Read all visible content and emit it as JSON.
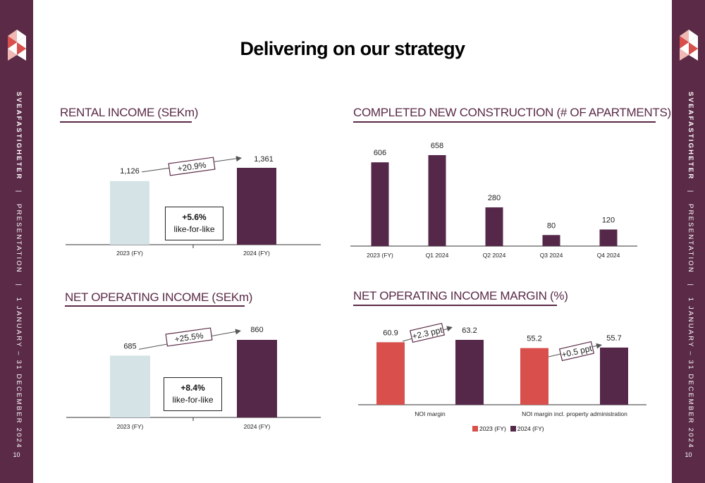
{
  "sidebar": {
    "company": "SVEAFASTIGHETER",
    "separator1": "|",
    "doc_type": "PRESENTATION",
    "separator2": "|",
    "period": "1 JANUARY – 31 DECEMBER 2024",
    "page_number": "10"
  },
  "page": {
    "title": "Delivering on our strategy"
  },
  "colors": {
    "brand": "#5a2a47",
    "light": "#d5e3e6",
    "red": "#d94f4c",
    "plum": "#55284a"
  },
  "sections": {
    "rental_income": {
      "title": "RENTAL INCOME (SEKm)",
      "change": "+20.9%",
      "lfl_pct": "+5.6%",
      "lfl_label": "like-for-like"
    },
    "construction": {
      "title": "COMPLETED NEW CONSTRUCTION (# OF APARTMENTS)"
    },
    "noi": {
      "title": "NET OPERATING INCOME (SEKm)",
      "change": "+25.5%",
      "lfl_pct": "+8.4%",
      "lfl_label": "like-for-like"
    },
    "noi_margin": {
      "title": "NET OPERATING INCOME MARGIN (%)",
      "change_1": "+2.3 ppt",
      "change_2": "+0.5 ppt"
    }
  },
  "chart_data": [
    {
      "type": "bar",
      "categories": [
        "2023 (FY)",
        "2024 (FY)"
      ],
      "values": [
        1126,
        1361
      ],
      "data_labels": [
        "1,126",
        "1,361"
      ],
      "title": "RENTAL INCOME (SEKm)"
    },
    {
      "type": "bar",
      "categories": [
        "2023 (FY)",
        "Q1 2024",
        "Q2 2024",
        "Q3 2024",
        "Q4 2024"
      ],
      "values": [
        606,
        658,
        280,
        80,
        120
      ],
      "data_labels": [
        "606",
        "658",
        "280",
        "80",
        "120"
      ],
      "title": "COMPLETED NEW CONSTRUCTION (# OF APARTMENTS)"
    },
    {
      "type": "bar",
      "categories": [
        "2023 (FY)",
        "2024 (FY)"
      ],
      "values": [
        685,
        860
      ],
      "data_labels": [
        "685",
        "860"
      ],
      "title": "NET OPERATING INCOME (SEKm)"
    },
    {
      "type": "bar",
      "categories": [
        "NOI margin",
        "NOI margin incl. property administration"
      ],
      "series": [
        {
          "name": "2023 (FY)",
          "values": [
            60.9,
            55.2
          ],
          "data_labels": [
            "60.9",
            "55.2"
          ]
        },
        {
          "name": "2024 (FY)",
          "values": [
            63.2,
            55.7
          ],
          "data_labels": [
            "63.2",
            "55.7"
          ]
        }
      ],
      "legend": "bottom",
      "title": "NET OPERATING INCOME MARGIN (%)"
    }
  ]
}
